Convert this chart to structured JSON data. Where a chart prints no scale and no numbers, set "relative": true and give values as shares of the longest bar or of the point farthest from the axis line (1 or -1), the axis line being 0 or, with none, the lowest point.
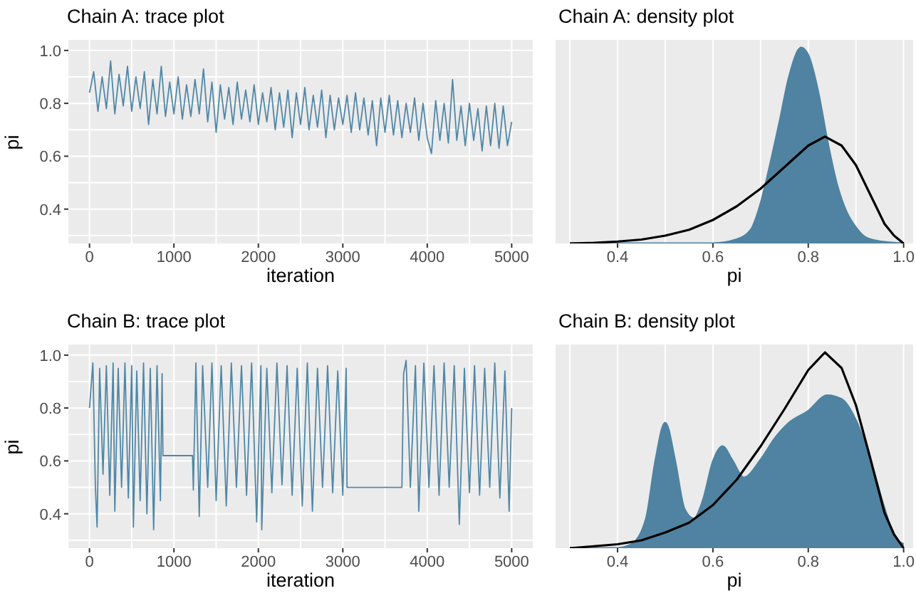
{
  "chart_data": [
    {
      "type": "line",
      "title": "Chain A: trace plot",
      "xlabel": "iteration",
      "ylabel": "pi",
      "xlim": [
        -250,
        5250
      ],
      "ylim": [
        0.27,
        1.04
      ],
      "xticks": [
        0,
        1000,
        2000,
        3000,
        4000,
        5000
      ],
      "yticks": [
        0.4,
        0.6,
        0.8,
        {
          "value": 1.0,
          "label": "1.0"
        }
      ],
      "grid": true,
      "series": [
        {
          "color": "#5087a6",
          "x": [
            0,
            50,
            100,
            150,
            200,
            250,
            300,
            350,
            400,
            450,
            500,
            550,
            600,
            650,
            700,
            750,
            800,
            850,
            900,
            950,
            1000,
            1050,
            1100,
            1150,
            1200,
            1250,
            1300,
            1350,
            1400,
            1450,
            1500,
            1550,
            1600,
            1650,
            1700,
            1750,
            1800,
            1850,
            1900,
            1950,
            2000,
            2050,
            2100,
            2150,
            2200,
            2250,
            2300,
            2350,
            2400,
            2450,
            2500,
            2550,
            2600,
            2650,
            2700,
            2750,
            2800,
            2850,
            2900,
            2950,
            3000,
            3050,
            3100,
            3150,
            3200,
            3250,
            3300,
            3350,
            3400,
            3450,
            3500,
            3550,
            3600,
            3650,
            3700,
            3750,
            3800,
            3850,
            3900,
            3950,
            4000,
            4050,
            4100,
            4150,
            4200,
            4250,
            4300,
            4350,
            4400,
            4450,
            4500,
            4550,
            4600,
            4650,
            4700,
            4750,
            4800,
            4850,
            4900,
            4950,
            5000
          ],
          "values": [
            0.84,
            0.92,
            0.77,
            0.9,
            0.78,
            0.96,
            0.76,
            0.91,
            0.79,
            0.94,
            0.77,
            0.9,
            0.78,
            0.92,
            0.72,
            0.89,
            0.76,
            0.94,
            0.75,
            0.88,
            0.76,
            0.9,
            0.74,
            0.87,
            0.75,
            0.89,
            0.76,
            0.93,
            0.73,
            0.88,
            0.69,
            0.87,
            0.74,
            0.86,
            0.72,
            0.88,
            0.74,
            0.85,
            0.73,
            0.87,
            0.72,
            0.84,
            0.73,
            0.86,
            0.7,
            0.84,
            0.71,
            0.85,
            0.67,
            0.84,
            0.72,
            0.86,
            0.7,
            0.83,
            0.71,
            0.85,
            0.67,
            0.83,
            0.7,
            0.82,
            0.72,
            0.83,
            0.69,
            0.84,
            0.7,
            0.82,
            0.68,
            0.81,
            0.64,
            0.82,
            0.69,
            0.83,
            0.68,
            0.81,
            0.67,
            0.8,
            0.69,
            0.82,
            0.66,
            0.8,
            0.67,
            0.61,
            0.81,
            0.66,
            0.8,
            0.65,
            0.89,
            0.66,
            0.79,
            0.64,
            0.8,
            0.66,
            0.78,
            0.62,
            0.79,
            0.64,
            0.8,
            0.63,
            0.79,
            0.64,
            0.73
          ]
        }
      ]
    },
    {
      "type": "area",
      "title": "Chain A: density plot",
      "xlabel": "pi",
      "relative": true,
      "tick_labels": "x",
      "xlim": [
        0.27,
        1.02
      ],
      "xticks": [
        0.4,
        0.6,
        0.8,
        {
          "value": 1.0,
          "label": "1.0"
        }
      ],
      "grid": true,
      "series": [
        {
          "color": "#4f83a1",
          "x": [
            0.3,
            0.6,
            0.65,
            0.68,
            0.7,
            0.72,
            0.74,
            0.76,
            0.78,
            0.785,
            0.8,
            0.82,
            0.84,
            0.86,
            0.88,
            0.9,
            0.92,
            0.95,
            1.0
          ],
          "values": [
            0,
            0,
            0.02,
            0.07,
            0.2,
            0.4,
            0.62,
            0.85,
            0.99,
            1,
            0.96,
            0.78,
            0.52,
            0.3,
            0.16,
            0.08,
            0.03,
            0.01,
            0
          ]
        },
        {
          "type": "line",
          "color": "#000000",
          "x": [
            0.3,
            0.35,
            0.4,
            0.45,
            0.5,
            0.55,
            0.6,
            0.65,
            0.7,
            0.75,
            0.8,
            0.835,
            0.87,
            0.9,
            0.93,
            0.96,
            0.98,
            1.0
          ],
          "values": [
            0,
            0.003,
            0.01,
            0.02,
            0.04,
            0.07,
            0.12,
            0.19,
            0.28,
            0.39,
            0.5,
            0.546,
            0.5,
            0.4,
            0.25,
            0.1,
            0.04,
            0
          ]
        }
      ]
    },
    {
      "type": "line",
      "title": "Chain B: trace plot",
      "xlabel": "iteration",
      "ylabel": "pi",
      "xlim": [
        -250,
        5250
      ],
      "ylim": [
        0.27,
        1.04
      ],
      "xticks": [
        0,
        1000,
        2000,
        3000,
        4000,
        5000
      ],
      "yticks": [
        0.4,
        0.6,
        0.8,
        {
          "value": 1.0,
          "label": "1.0"
        }
      ],
      "grid": true,
      "series": [
        {
          "color": "#5087a6",
          "x": [
            0,
            40,
            70,
            90,
            120,
            160,
            200,
            240,
            280,
            300,
            340,
            380,
            420,
            460,
            500,
            520,
            560,
            600,
            640,
            680,
            720,
            760,
            800,
            840,
            860,
            870,
            1220,
            1230,
            1260,
            1300,
            1340,
            1400,
            1450,
            1500,
            1560,
            1620,
            1680,
            1740,
            1800,
            1860,
            1920,
            1980,
            2030,
            2040,
            2100,
            2160,
            2220,
            2280,
            2340,
            2400,
            2460,
            2520,
            2580,
            2640,
            2700,
            2760,
            2820,
            2880,
            2940,
            3000,
            3040,
            3050,
            3700,
            3720,
            3750,
            3800,
            3860,
            3900,
            3960,
            4020,
            4080,
            4140,
            4200,
            4260,
            4320,
            4380,
            4440,
            4500,
            4560,
            4620,
            4680,
            4740,
            4800,
            4860,
            4920,
            4970,
            5000
          ],
          "values": [
            0.8,
            0.97,
            0.5,
            0.35,
            0.95,
            0.55,
            0.96,
            0.47,
            0.97,
            0.41,
            0.95,
            0.5,
            0.97,
            0.46,
            0.96,
            0.35,
            0.94,
            0.45,
            0.97,
            0.4,
            0.95,
            0.34,
            0.96,
            0.45,
            0.93,
            0.62,
            0.62,
            0.49,
            0.97,
            0.39,
            0.96,
            0.5,
            0.97,
            0.45,
            0.96,
            0.43,
            0.97,
            0.5,
            0.96,
            0.47,
            0.97,
            0.37,
            0.96,
            0.34,
            0.95,
            0.48,
            0.97,
            0.51,
            0.96,
            0.47,
            0.95,
            0.43,
            0.97,
            0.41,
            0.95,
            0.5,
            0.96,
            0.48,
            0.94,
            0.47,
            0.95,
            0.5,
            0.5,
            0.93,
            0.98,
            0.5,
            0.96,
            0.41,
            0.97,
            0.5,
            0.96,
            0.47,
            0.97,
            0.5,
            0.96,
            0.36,
            0.95,
            0.48,
            0.96,
            0.47,
            0.95,
            0.5,
            0.97,
            0.46,
            0.94,
            0.41,
            0.8
          ]
        }
      ]
    },
    {
      "type": "area",
      "title": "Chain B: density plot",
      "xlabel": "pi",
      "relative": true,
      "tick_labels": "x",
      "xlim": [
        0.27,
        1.02
      ],
      "xticks": [
        0.4,
        0.6,
        0.8,
        {
          "value": 1.0,
          "label": "1.0"
        }
      ],
      "grid": true,
      "series": [
        {
          "color": "#4f83a1",
          "x": [
            0.3,
            0.4,
            0.43,
            0.46,
            0.48,
            0.5,
            0.52,
            0.54,
            0.56,
            0.58,
            0.6,
            0.62,
            0.64,
            0.665,
            0.7,
            0.73,
            0.76,
            0.8,
            0.84,
            0.87,
            0.9,
            0.93,
            0.96,
            0.98,
            1.0
          ],
          "values": [
            0,
            0,
            0.02,
            0.15,
            0.45,
            0.64,
            0.45,
            0.2,
            0.15,
            0.25,
            0.44,
            0.52,
            0.45,
            0.36,
            0.45,
            0.56,
            0.64,
            0.7,
            0.78,
            0.76,
            0.65,
            0.45,
            0.2,
            0.06,
            0.02
          ]
        },
        {
          "type": "line",
          "color": "#000000",
          "x": [
            0.3,
            0.4,
            0.45,
            0.5,
            0.55,
            0.6,
            0.65,
            0.7,
            0.75,
            0.8,
            0.835,
            0.87,
            0.9,
            0.93,
            0.96,
            0.98,
            1.0
          ],
          "values": [
            0,
            0.02,
            0.04,
            0.08,
            0.13,
            0.22,
            0.35,
            0.52,
            0.71,
            0.91,
            1,
            0.92,
            0.73,
            0.46,
            0.18,
            0.07,
            0
          ]
        }
      ]
    }
  ]
}
